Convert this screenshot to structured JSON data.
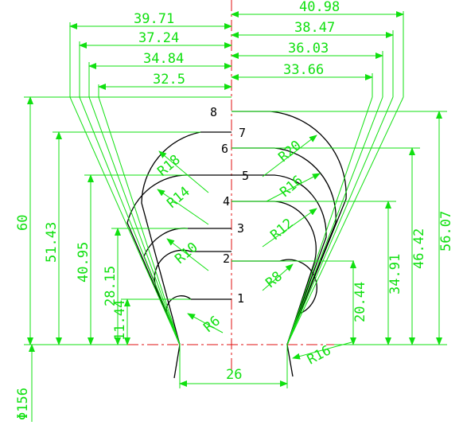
{
  "horizontal_dimensions": {
    "left": [
      "39.71",
      "37.24",
      "34.84",
      "32.5"
    ],
    "right": [
      "40.98",
      "38.47",
      "36.03",
      "33.66"
    ],
    "bottom": "26"
  },
  "vertical_dimensions": {
    "left": [
      "60",
      "51.43",
      "40.95",
      "28.15",
      "11.44"
    ],
    "right": [
      "56.07",
      "46.42",
      "34.91",
      "20.44"
    ]
  },
  "radii": {
    "left": [
      "R18",
      "R14",
      "R10",
      "R6"
    ],
    "right": [
      "R20",
      "R16",
      "R12",
      "R8"
    ],
    "bottom": "R16"
  },
  "step_labels": [
    "1",
    "2",
    "3",
    "4",
    "5",
    "6",
    "7",
    "8"
  ],
  "diameter": "Φ156",
  "colors": {
    "dimension": "#10e010",
    "outline": "#000000",
    "centerline": "#e01010"
  }
}
